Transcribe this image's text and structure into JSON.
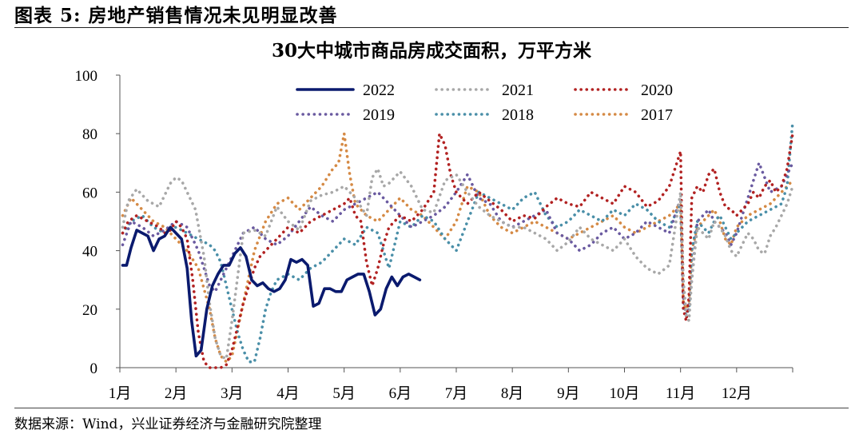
{
  "header": {
    "figure_label": "图表 5:",
    "figure_title": "房地产销售情况未见明显改善"
  },
  "source": "数据来源：Wind，兴业证券经济与金融研究院整理",
  "chart_data": {
    "type": "line",
    "title": "30大中城市商品房成交面积，万平方米",
    "xlabel": "",
    "ylabel": "",
    "ylim": [
      0,
      100
    ],
    "yticks": [
      0,
      20,
      40,
      60,
      80,
      100
    ],
    "xlim": [
      0,
      12
    ],
    "xticks": [
      "1月",
      "2月",
      "3月",
      "4月",
      "5月",
      "6月",
      "7月",
      "8月",
      "9月",
      "10月",
      "11月",
      "12月"
    ],
    "grid": false,
    "legend": "top-center",
    "series": [
      {
        "name": "2022",
        "color": "#0a1a6e",
        "style": "solid",
        "x": [
          0.05,
          0.12,
          0.2,
          0.3,
          0.4,
          0.5,
          0.6,
          0.7,
          0.8,
          0.9,
          1.0,
          1.1,
          1.2,
          1.28,
          1.36,
          1.45,
          1.55,
          1.65,
          1.75,
          1.85,
          1.95,
          2.05,
          2.15,
          2.25,
          2.35,
          2.45,
          2.55,
          2.65,
          2.75,
          2.85,
          2.95,
          3.05,
          3.15,
          3.25,
          3.35,
          3.45,
          3.55,
          3.65,
          3.75,
          3.85,
          3.95,
          4.05,
          4.15,
          4.25,
          4.35,
          4.45,
          4.55,
          4.65,
          4.75,
          4.85,
          4.95,
          5.05,
          5.15,
          5.25,
          5.35
        ],
        "y": [
          35,
          35,
          41,
          47,
          46,
          45,
          40,
          44,
          45,
          48,
          46,
          44,
          34,
          16,
          4,
          6,
          20,
          28,
          32,
          35,
          35,
          39,
          41,
          38,
          30,
          28,
          29,
          27,
          26,
          27,
          30,
          37,
          36,
          37,
          35,
          21,
          22,
          27,
          27,
          26,
          26,
          30,
          31,
          32,
          32,
          26,
          18,
          20,
          27,
          31,
          28,
          31,
          32,
          31,
          30
        ]
      },
      {
        "name": "2021",
        "color": "#a8a8a8",
        "style": "dotted",
        "x": [
          0.05,
          0.15,
          0.3,
          0.5,
          0.7,
          0.9,
          1.0,
          1.1,
          1.2,
          1.35,
          1.5,
          1.6,
          1.7,
          1.8,
          1.9,
          2.0,
          2.2,
          2.4,
          2.6,
          2.8,
          3.0,
          3.2,
          3.4,
          3.6,
          3.8,
          4.0,
          4.2,
          4.4,
          4.5,
          4.6,
          4.7,
          4.8,
          5.0,
          5.2,
          5.4,
          5.6,
          5.8,
          6.0,
          6.2,
          6.4,
          6.6,
          6.8,
          7.0,
          7.2,
          7.4,
          7.6,
          7.8,
          8.0,
          8.2,
          8.4,
          8.6,
          8.8,
          9.0,
          9.2,
          9.4,
          9.6,
          9.8,
          10.0,
          10.05,
          10.1,
          10.15,
          10.2,
          10.3,
          10.4,
          10.5,
          10.6,
          10.7,
          10.8,
          10.9,
          11.0,
          11.1,
          11.2,
          11.3,
          11.4,
          11.5,
          11.6,
          11.7,
          11.8,
          11.9,
          12.0
        ],
        "y": [
          48,
          57,
          61,
          57,
          55,
          63,
          65,
          64,
          60,
          54,
          38,
          22,
          10,
          4,
          3,
          16,
          46,
          47,
          45,
          55,
          50,
          47,
          57,
          59,
          60,
          62,
          58,
          52,
          65,
          68,
          62,
          63,
          67,
          62,
          54,
          53,
          64,
          66,
          60,
          55,
          52,
          50,
          48,
          48,
          46,
          44,
          40,
          43,
          48,
          44,
          42,
          40,
          44,
          38,
          34,
          32,
          35,
          60,
          30,
          18,
          16,
          30,
          48,
          46,
          44,
          50,
          48,
          45,
          40,
          38,
          42,
          46,
          44,
          40,
          39,
          45,
          48,
          52,
          56,
          62
        ]
      },
      {
        "name": "2020",
        "color": "#b22222",
        "style": "dotted",
        "x": [
          0.05,
          0.15,
          0.3,
          0.5,
          0.7,
          0.8,
          0.9,
          1.0,
          1.1,
          1.2,
          1.3,
          1.4,
          1.5,
          1.6,
          1.7,
          1.8,
          1.9,
          2.0,
          2.1,
          2.2,
          2.3,
          2.4,
          2.5,
          2.6,
          2.8,
          3.0,
          3.2,
          3.4,
          3.6,
          3.8,
          4.0,
          4.1,
          4.2,
          4.3,
          4.4,
          4.5,
          4.6,
          4.7,
          4.8,
          5.0,
          5.2,
          5.4,
          5.6,
          5.7,
          5.8,
          5.9,
          6.0,
          6.2,
          6.4,
          6.6,
          6.8,
          7.0,
          7.2,
          7.4,
          7.6,
          7.8,
          8.0,
          8.2,
          8.4,
          8.6,
          8.8,
          9.0,
          9.2,
          9.4,
          9.6,
          9.8,
          10.0,
          10.05,
          10.1,
          10.15,
          10.2,
          10.3,
          10.4,
          10.5,
          10.6,
          10.7,
          10.8,
          10.9,
          11.0,
          11.1,
          11.2,
          11.3,
          11.4,
          11.5,
          11.6,
          11.7,
          11.8,
          11.9,
          12.0
        ],
        "y": [
          46,
          50,
          52,
          50,
          48,
          46,
          47,
          50,
          48,
          44,
          30,
          12,
          2,
          0,
          0,
          0,
          1,
          6,
          14,
          22,
          28,
          34,
          38,
          40,
          44,
          48,
          46,
          50,
          52,
          54,
          56,
          58,
          52,
          50,
          36,
          28,
          34,
          42,
          48,
          52,
          50,
          54,
          60,
          80,
          76,
          66,
          60,
          56,
          60,
          57,
          54,
          50,
          52,
          51,
          55,
          58,
          56,
          55,
          60,
          58,
          56,
          62,
          60,
          55,
          57,
          62,
          74,
          20,
          16,
          24,
          58,
          62,
          60,
          66,
          68,
          60,
          55,
          54,
          52,
          54,
          56,
          60,
          58,
          62,
          64,
          60,
          62,
          68,
          80
        ]
      },
      {
        "name": "2019",
        "color": "#6a5aa0",
        "style": "dotted",
        "x": [
          0.05,
          0.2,
          0.4,
          0.6,
          0.8,
          1.0,
          1.2,
          1.4,
          1.5,
          1.6,
          1.7,
          1.8,
          1.9,
          2.0,
          2.2,
          2.4,
          2.6,
          2.8,
          3.0,
          3.2,
          3.4,
          3.6,
          3.8,
          4.0,
          4.2,
          4.4,
          4.6,
          4.8,
          5.0,
          5.2,
          5.4,
          5.6,
          5.8,
          6.0,
          6.2,
          6.4,
          6.6,
          6.8,
          7.0,
          7.2,
          7.4,
          7.6,
          7.8,
          8.0,
          8.2,
          8.4,
          8.6,
          8.8,
          9.0,
          9.2,
          9.4,
          9.6,
          9.8,
          10.0,
          10.05,
          10.1,
          10.15,
          10.2,
          10.3,
          10.4,
          10.5,
          10.6,
          10.7,
          10.8,
          10.9,
          11.0,
          11.2,
          11.4,
          11.6,
          11.8,
          12.0
        ],
        "y": [
          42,
          50,
          48,
          45,
          47,
          50,
          48,
          40,
          34,
          28,
          26,
          30,
          34,
          38,
          46,
          48,
          44,
          42,
          45,
          50,
          55,
          52,
          50,
          54,
          56,
          58,
          60,
          56,
          52,
          48,
          50,
          52,
          55,
          60,
          66,
          58,
          56,
          50,
          48,
          50,
          52,
          54,
          46,
          44,
          40,
          42,
          46,
          48,
          44,
          46,
          50,
          48,
          46,
          58,
          24,
          18,
          20,
          30,
          50,
          52,
          54,
          50,
          48,
          46,
          42,
          46,
          58,
          70,
          60,
          62,
          70
        ]
      },
      {
        "name": "2018",
        "color": "#4a8fa8",
        "style": "dotted",
        "x": [
          0.05,
          0.2,
          0.4,
          0.6,
          0.8,
          1.0,
          1.2,
          1.4,
          1.6,
          1.7,
          1.8,
          1.9,
          2.0,
          2.1,
          2.2,
          2.3,
          2.4,
          2.5,
          2.6,
          2.7,
          2.8,
          3.0,
          3.2,
          3.4,
          3.6,
          3.8,
          4.0,
          4.2,
          4.4,
          4.6,
          4.8,
          5.0,
          5.2,
          5.4,
          5.6,
          5.8,
          6.0,
          6.2,
          6.4,
          6.6,
          6.8,
          7.0,
          7.2,
          7.4,
          7.6,
          7.8,
          8.0,
          8.2,
          8.4,
          8.6,
          8.8,
          9.0,
          9.2,
          9.4,
          9.6,
          9.8,
          10.0,
          10.05,
          10.1,
          10.15,
          10.2,
          10.3,
          10.4,
          10.5,
          10.6,
          10.7,
          10.8,
          10.9,
          11.0,
          11.2,
          11.4,
          11.6,
          11.8,
          11.9,
          12.0
        ],
        "y": [
          46,
          50,
          52,
          48,
          46,
          48,
          46,
          44,
          42,
          40,
          36,
          28,
          20,
          12,
          6,
          2,
          2,
          10,
          20,
          26,
          30,
          32,
          30,
          34,
          36,
          40,
          44,
          42,
          48,
          46,
          34,
          50,
          48,
          52,
          50,
          44,
          40,
          50,
          60,
          58,
          56,
          54,
          58,
          60,
          52,
          48,
          50,
          54,
          52,
          50,
          54,
          52,
          56,
          54,
          50,
          48,
          56,
          20,
          18,
          20,
          40,
          50,
          48,
          46,
          50,
          52,
          48,
          44,
          46,
          50,
          52,
          54,
          56,
          62,
          84
        ]
      },
      {
        "name": "2017",
        "color": "#d58a45",
        "style": "dotted",
        "x": [
          0.05,
          0.2,
          0.4,
          0.6,
          0.8,
          1.0,
          1.2,
          1.4,
          1.6,
          1.7,
          1.8,
          1.9,
          2.0,
          2.2,
          2.4,
          2.6,
          2.8,
          3.0,
          3.2,
          3.4,
          3.6,
          3.8,
          3.9,
          4.0,
          4.1,
          4.2,
          4.4,
          4.6,
          4.8,
          5.0,
          5.2,
          5.4,
          5.6,
          5.8,
          6.0,
          6.2,
          6.4,
          6.6,
          6.8,
          7.0,
          7.2,
          7.4,
          7.6,
          7.8,
          8.0,
          8.2,
          8.4,
          8.6,
          8.8,
          9.0,
          9.2,
          9.4,
          9.6,
          9.8,
          10.0,
          10.05,
          10.1,
          10.15,
          10.2,
          10.3,
          10.4,
          10.5,
          10.6,
          10.7,
          10.8,
          10.9,
          11.0,
          11.2,
          11.4,
          11.6,
          11.8,
          12.0
        ],
        "y": [
          52,
          58,
          54,
          50,
          48,
          44,
          40,
          34,
          20,
          10,
          4,
          2,
          4,
          22,
          40,
          50,
          56,
          58,
          54,
          58,
          62,
          68,
          70,
          80,
          66,
          56,
          52,
          50,
          54,
          58,
          54,
          52,
          48,
          44,
          50,
          62,
          60,
          52,
          48,
          46,
          48,
          50,
          48,
          46,
          44,
          46,
          48,
          50,
          52,
          48,
          46,
          48,
          50,
          52,
          56,
          22,
          20,
          22,
          40,
          48,
          50,
          52,
          54,
          50,
          44,
          42,
          48,
          52,
          54,
          56,
          60,
          64
        ]
      }
    ]
  }
}
